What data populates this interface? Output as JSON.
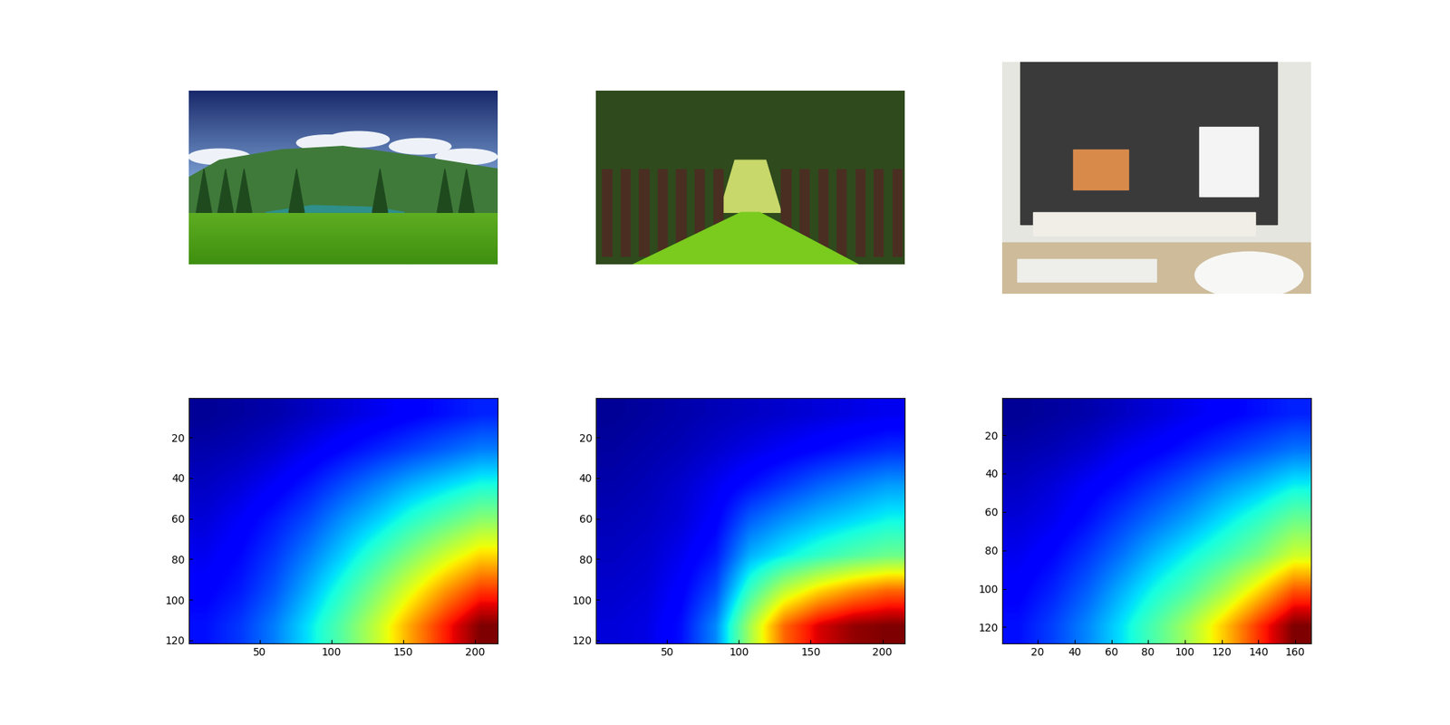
{
  "chart_data": [
    {
      "type": "heatmap",
      "color": "jet",
      "vlim": [
        0,
        1
      ],
      "xlim": [
        0.5,
        215.5
      ],
      "ylim": [
        121.5,
        0.5
      ],
      "xticks": [
        50,
        100,
        150,
        200
      ],
      "yticks": [
        20,
        40,
        60,
        80,
        100,
        120
      ],
      "cells": [
        [
          0.02,
          0.03,
          0.04,
          0.06,
          0.08,
          0.1,
          0.12,
          0.14,
          0.16
        ],
        [
          0.04,
          0.05,
          0.07,
          0.1,
          0.13,
          0.16,
          0.19,
          0.22,
          0.25
        ],
        [
          0.06,
          0.08,
          0.11,
          0.15,
          0.2,
          0.25,
          0.3,
          0.34,
          0.38
        ],
        [
          0.08,
          0.11,
          0.15,
          0.2,
          0.27,
          0.33,
          0.4,
          0.46,
          0.52
        ],
        [
          0.1,
          0.13,
          0.18,
          0.25,
          0.33,
          0.42,
          0.51,
          0.6,
          0.68
        ],
        [
          0.12,
          0.15,
          0.21,
          0.3,
          0.4,
          0.51,
          0.63,
          0.75,
          0.85
        ],
        [
          0.14,
          0.18,
          0.25,
          0.35,
          0.46,
          0.59,
          0.74,
          0.88,
          1.0
        ]
      ]
    },
    {
      "type": "heatmap",
      "color": "jet",
      "vlim": [
        0,
        1
      ],
      "xlim": [
        0.5,
        215.5
      ],
      "ylim": [
        121.5,
        0.5
      ],
      "xticks": [
        50,
        100,
        150,
        200
      ],
      "yticks": [
        20,
        40,
        60,
        80,
        100,
        120
      ],
      "cells": [
        [
          0.02,
          0.03,
          0.04,
          0.05,
          0.06,
          0.07,
          0.08,
          0.09,
          0.1
        ],
        [
          0.03,
          0.04,
          0.05,
          0.07,
          0.09,
          0.11,
          0.13,
          0.15,
          0.17
        ],
        [
          0.04,
          0.05,
          0.07,
          0.1,
          0.14,
          0.18,
          0.22,
          0.25,
          0.28
        ],
        [
          0.05,
          0.06,
          0.08,
          0.12,
          0.22,
          0.27,
          0.31,
          0.34,
          0.37
        ],
        [
          0.06,
          0.07,
          0.1,
          0.15,
          0.3,
          0.36,
          0.41,
          0.45,
          0.48
        ],
        [
          0.07,
          0.08,
          0.12,
          0.2,
          0.42,
          0.58,
          0.68,
          0.75,
          0.8
        ],
        [
          0.08,
          0.09,
          0.14,
          0.26,
          0.55,
          0.8,
          0.92,
          0.98,
          1.0
        ]
      ]
    },
    {
      "type": "heatmap",
      "color": "jet",
      "vlim": [
        0,
        1
      ],
      "xlim": [
        0.5,
        168.5
      ],
      "ylim": [
        128.5,
        0.5
      ],
      "xticks": [
        20,
        40,
        60,
        80,
        100,
        120,
        140,
        160
      ],
      "yticks": [
        20,
        40,
        60,
        80,
        100,
        120
      ],
      "cells": [
        [
          0.02,
          0.03,
          0.04,
          0.06,
          0.08,
          0.1,
          0.12,
          0.14,
          0.16
        ],
        [
          0.04,
          0.05,
          0.07,
          0.1,
          0.12,
          0.15,
          0.18,
          0.21,
          0.24
        ],
        [
          0.06,
          0.08,
          0.11,
          0.14,
          0.18,
          0.22,
          0.27,
          0.31,
          0.36
        ],
        [
          0.08,
          0.1,
          0.14,
          0.19,
          0.24,
          0.29,
          0.35,
          0.41,
          0.48
        ],
        [
          0.1,
          0.13,
          0.18,
          0.24,
          0.31,
          0.37,
          0.43,
          0.5,
          0.6
        ],
        [
          0.12,
          0.16,
          0.22,
          0.3,
          0.38,
          0.45,
          0.55,
          0.68,
          0.82
        ],
        [
          0.14,
          0.19,
          0.26,
          0.35,
          0.45,
          0.56,
          0.7,
          0.86,
          1.0
        ]
      ]
    }
  ]
}
